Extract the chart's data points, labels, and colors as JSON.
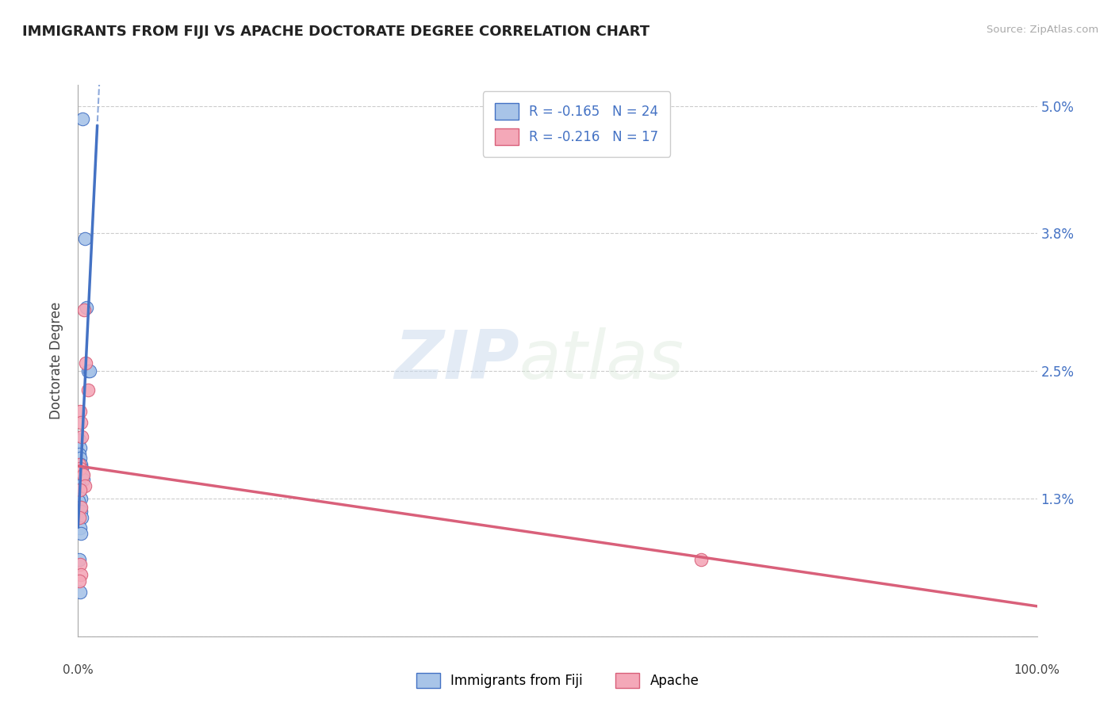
{
  "title": "IMMIGRANTS FROM FIJI VS APACHE DOCTORATE DEGREE CORRELATION CHART",
  "source_text": "Source: ZipAtlas.com",
  "ylabel": "Doctorate Degree",
  "xlim": [
    0,
    100
  ],
  "ylim": [
    0,
    5.2
  ],
  "ytick_vals": [
    0,
    1.3,
    2.5,
    3.8,
    5.0
  ],
  "ytick_labels_right": [
    "",
    "1.3%",
    "2.5%",
    "3.8%",
    "5.0%"
  ],
  "color_fiji": "#a8c4e8",
  "color_apache": "#f4a8b8",
  "line_color_fiji": "#4472c4",
  "line_color_apache": "#d9607a",
  "r1": "-0.165",
  "n1": "24",
  "r2": "-0.216",
  "n2": "17",
  "legend_label1": "Immigrants from Fiji",
  "legend_label2": "Apache",
  "watermark_zip": "ZIP",
  "watermark_atlas": "atlas",
  "fiji_x": [
    0.5,
    0.7,
    0.9,
    1.0,
    1.2,
    0.15,
    0.25,
    0.1,
    0.2,
    0.3,
    0.35,
    0.45,
    0.55,
    0.12,
    0.22,
    0.32,
    0.08,
    0.18,
    0.28,
    0.42,
    0.2,
    0.3,
    0.1,
    0.25
  ],
  "fiji_y": [
    4.88,
    3.75,
    3.1,
    2.5,
    2.5,
    1.85,
    1.78,
    1.72,
    1.68,
    1.62,
    1.58,
    1.53,
    1.48,
    1.42,
    1.38,
    1.3,
    1.28,
    1.22,
    1.18,
    1.12,
    1.02,
    0.97,
    0.72,
    0.42
  ],
  "apache_x": [
    0.6,
    0.8,
    1.0,
    0.18,
    0.32,
    0.42,
    0.14,
    0.24,
    0.52,
    0.7,
    0.22,
    0.28,
    0.1,
    65.0,
    0.18,
    0.32,
    0.14
  ],
  "apache_y": [
    3.08,
    2.58,
    2.32,
    2.12,
    2.02,
    1.88,
    1.62,
    1.58,
    1.52,
    1.42,
    1.38,
    1.22,
    1.12,
    0.72,
    0.68,
    0.58,
    0.52
  ],
  "fiji_line_x": [
    0,
    3.5
  ],
  "apache_line_x": [
    0,
    100
  ]
}
